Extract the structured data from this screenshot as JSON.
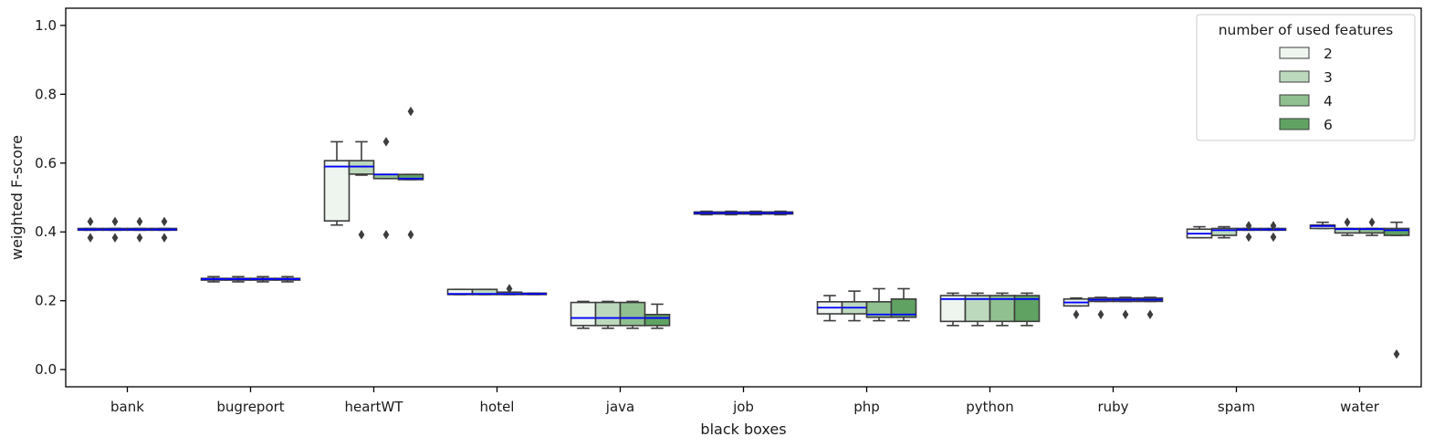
{
  "chart_data": {
    "type": "boxplot",
    "xlabel": "black boxes",
    "ylabel": "weighted F-score",
    "ylim": [
      -0.05,
      1.05
    ],
    "yticks": [
      "0.0",
      "0.2",
      "0.4",
      "0.6",
      "0.8",
      "1.0"
    ],
    "categories": [
      "bank",
      "bugreport",
      "heartWT",
      "hotel",
      "java",
      "job",
      "php",
      "python",
      "ruby",
      "spam",
      "water"
    ],
    "grid": false,
    "median_color": "#0000ff",
    "legend": {
      "title": "number of used features",
      "position": "top-right"
    },
    "series": [
      {
        "name": "2",
        "color": "#edf5ee",
        "boxes": [
          {
            "whislo": 0.405,
            "q1": 0.405,
            "med": 0.407,
            "q3": 0.41,
            "whishi": 0.41,
            "fliers": [
              0.383,
              0.43
            ]
          },
          {
            "whislo": 0.255,
            "q1": 0.26,
            "med": 0.263,
            "q3": 0.265,
            "whishi": 0.27,
            "fliers": []
          },
          {
            "whislo": 0.42,
            "q1": 0.432,
            "med": 0.59,
            "q3": 0.607,
            "whishi": 0.662,
            "fliers": []
          },
          {
            "whislo": 0.218,
            "q1": 0.218,
            "med": 0.22,
            "q3": 0.233,
            "whishi": 0.233,
            "fliers": []
          },
          {
            "whislo": 0.12,
            "q1": 0.128,
            "med": 0.15,
            "q3": 0.195,
            "whishi": 0.198,
            "fliers": []
          },
          {
            "whislo": 0.45,
            "q1": 0.452,
            "med": 0.455,
            "q3": 0.458,
            "whishi": 0.46,
            "fliers": []
          },
          {
            "whislo": 0.142,
            "q1": 0.162,
            "med": 0.18,
            "q3": 0.197,
            "whishi": 0.215,
            "fliers": []
          },
          {
            "whislo": 0.128,
            "q1": 0.14,
            "med": 0.205,
            "q3": 0.215,
            "whishi": 0.222,
            "fliers": []
          },
          {
            "whislo": 0.185,
            "q1": 0.185,
            "med": 0.195,
            "q3": 0.205,
            "whishi": 0.208,
            "fliers": [
              0.16
            ]
          },
          {
            "whislo": 0.383,
            "q1": 0.383,
            "med": 0.395,
            "q3": 0.408,
            "whishi": 0.415,
            "fliers": []
          },
          {
            "whislo": 0.41,
            "q1": 0.41,
            "med": 0.417,
            "q3": 0.42,
            "whishi": 0.428,
            "fliers": []
          }
        ]
      },
      {
        "name": "3",
        "color": "#bcd9bd",
        "boxes": [
          {
            "whislo": 0.405,
            "q1": 0.405,
            "med": 0.407,
            "q3": 0.41,
            "whishi": 0.41,
            "fliers": [
              0.383,
              0.43
            ]
          },
          {
            "whislo": 0.255,
            "q1": 0.26,
            "med": 0.263,
            "q3": 0.265,
            "whishi": 0.27,
            "fliers": []
          },
          {
            "whislo": 0.565,
            "q1": 0.568,
            "med": 0.59,
            "q3": 0.607,
            "whishi": 0.662,
            "fliers": [
              0.392
            ]
          },
          {
            "whislo": 0.218,
            "q1": 0.218,
            "med": 0.22,
            "q3": 0.233,
            "whishi": 0.233,
            "fliers": []
          },
          {
            "whislo": 0.12,
            "q1": 0.128,
            "med": 0.15,
            "q3": 0.195,
            "whishi": 0.198,
            "fliers": []
          },
          {
            "whislo": 0.45,
            "q1": 0.452,
            "med": 0.455,
            "q3": 0.458,
            "whishi": 0.46,
            "fliers": []
          },
          {
            "whislo": 0.142,
            "q1": 0.162,
            "med": 0.18,
            "q3": 0.197,
            "whishi": 0.228,
            "fliers": []
          },
          {
            "whislo": 0.128,
            "q1": 0.14,
            "med": 0.205,
            "q3": 0.215,
            "whishi": 0.222,
            "fliers": []
          },
          {
            "whislo": 0.198,
            "q1": 0.198,
            "med": 0.203,
            "q3": 0.208,
            "whishi": 0.21,
            "fliers": [
              0.16
            ]
          },
          {
            "whislo": 0.383,
            "q1": 0.39,
            "med": 0.405,
            "q3": 0.41,
            "whishi": 0.415,
            "fliers": []
          },
          {
            "whislo": 0.39,
            "q1": 0.397,
            "med": 0.408,
            "q3": 0.41,
            "whishi": 0.41,
            "fliers": [
              0.428
            ]
          }
        ]
      },
      {
        "name": "4",
        "color": "#90c08f",
        "boxes": [
          {
            "whislo": 0.405,
            "q1": 0.405,
            "med": 0.407,
            "q3": 0.41,
            "whishi": 0.41,
            "fliers": [
              0.383,
              0.43
            ]
          },
          {
            "whislo": 0.255,
            "q1": 0.26,
            "med": 0.263,
            "q3": 0.265,
            "whishi": 0.27,
            "fliers": []
          },
          {
            "whislo": 0.555,
            "q1": 0.555,
            "med": 0.567,
            "q3": 0.567,
            "whishi": 0.567,
            "fliers": [
              0.392,
              0.662
            ]
          },
          {
            "whislo": 0.218,
            "q1": 0.218,
            "med": 0.22,
            "q3": 0.225,
            "whishi": 0.225,
            "fliers": [
              0.235
            ]
          },
          {
            "whislo": 0.12,
            "q1": 0.128,
            "med": 0.15,
            "q3": 0.195,
            "whishi": 0.198,
            "fliers": []
          },
          {
            "whislo": 0.45,
            "q1": 0.452,
            "med": 0.455,
            "q3": 0.458,
            "whishi": 0.46,
            "fliers": []
          },
          {
            "whislo": 0.142,
            "q1": 0.152,
            "med": 0.16,
            "q3": 0.197,
            "whishi": 0.235,
            "fliers": []
          },
          {
            "whislo": 0.128,
            "q1": 0.14,
            "med": 0.205,
            "q3": 0.215,
            "whishi": 0.222,
            "fliers": []
          },
          {
            "whislo": 0.198,
            "q1": 0.198,
            "med": 0.203,
            "q3": 0.208,
            "whishi": 0.21,
            "fliers": [
              0.16
            ]
          },
          {
            "whislo": 0.405,
            "q1": 0.405,
            "med": 0.407,
            "q3": 0.41,
            "whishi": 0.41,
            "fliers": [
              0.385,
              0.418
            ]
          },
          {
            "whislo": 0.39,
            "q1": 0.397,
            "med": 0.408,
            "q3": 0.41,
            "whishi": 0.41,
            "fliers": [
              0.428
            ]
          }
        ]
      },
      {
        "name": "6",
        "color": "#60a262",
        "boxes": [
          {
            "whislo": 0.405,
            "q1": 0.405,
            "med": 0.407,
            "q3": 0.41,
            "whishi": 0.41,
            "fliers": [
              0.383,
              0.43
            ]
          },
          {
            "whislo": 0.255,
            "q1": 0.26,
            "med": 0.263,
            "q3": 0.265,
            "whishi": 0.27,
            "fliers": []
          },
          {
            "whislo": 0.552,
            "q1": 0.552,
            "med": 0.555,
            "q3": 0.567,
            "whishi": 0.567,
            "fliers": [
              0.392,
              0.75
            ]
          },
          {
            "whislo": 0.218,
            "q1": 0.218,
            "med": 0.22,
            "q3": 0.222,
            "whishi": 0.222,
            "fliers": []
          },
          {
            "whislo": 0.12,
            "q1": 0.128,
            "med": 0.15,
            "q3": 0.16,
            "whishi": 0.19,
            "fliers": []
          },
          {
            "whislo": 0.45,
            "q1": 0.452,
            "med": 0.455,
            "q3": 0.458,
            "whishi": 0.46,
            "fliers": []
          },
          {
            "whislo": 0.142,
            "q1": 0.152,
            "med": 0.16,
            "q3": 0.205,
            "whishi": 0.235,
            "fliers": []
          },
          {
            "whislo": 0.128,
            "q1": 0.14,
            "med": 0.205,
            "q3": 0.215,
            "whishi": 0.222,
            "fliers": []
          },
          {
            "whislo": 0.198,
            "q1": 0.198,
            "med": 0.203,
            "q3": 0.208,
            "whishi": 0.21,
            "fliers": [
              0.16
            ]
          },
          {
            "whislo": 0.405,
            "q1": 0.405,
            "med": 0.407,
            "q3": 0.41,
            "whishi": 0.41,
            "fliers": [
              0.385,
              0.418
            ]
          },
          {
            "whislo": 0.39,
            "q1": 0.39,
            "med": 0.405,
            "q3": 0.41,
            "whishi": 0.428,
            "fliers": [
              0.045
            ]
          }
        ]
      }
    ]
  }
}
